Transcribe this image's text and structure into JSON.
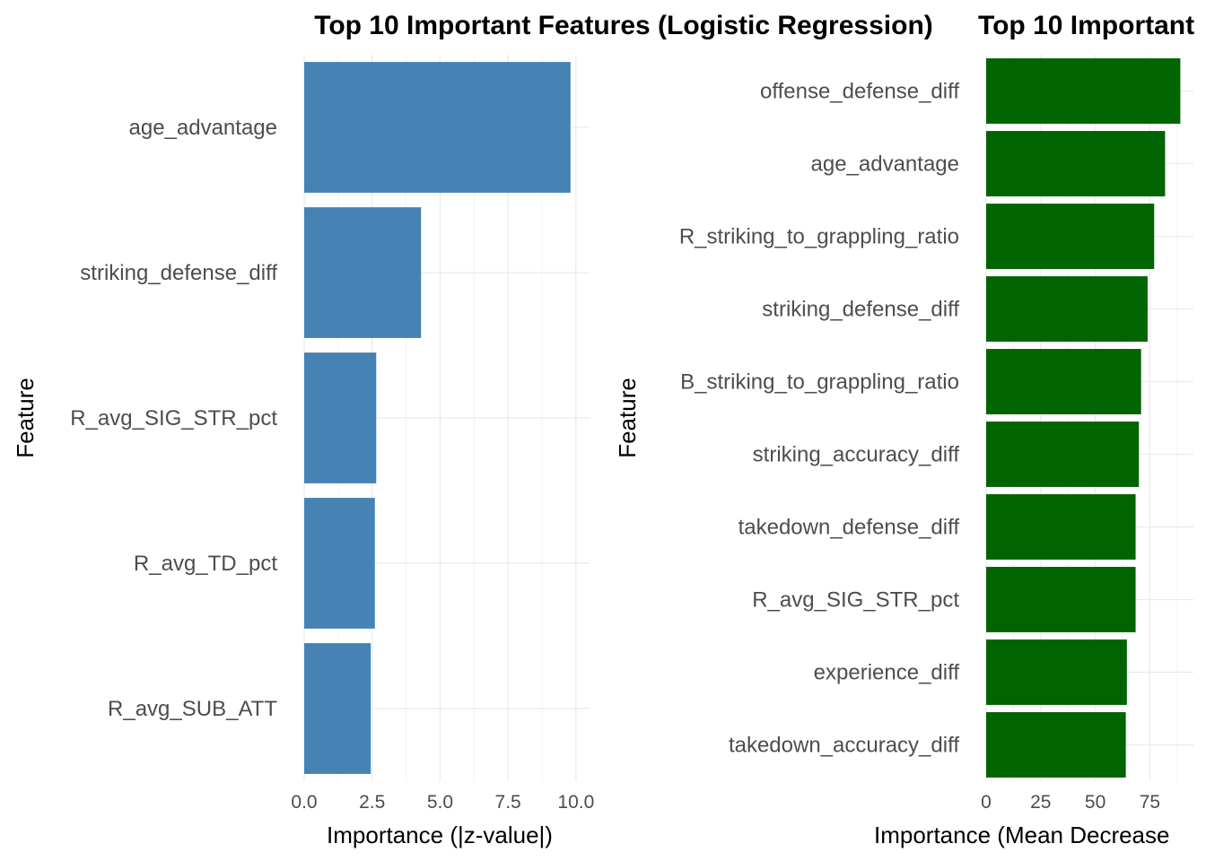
{
  "chart_data": [
    {
      "type": "bar",
      "orientation": "horizontal",
      "title": "Top 10 Important Features (Logistic Regression)",
      "xlabel": "Importance (|z-value|)",
      "ylabel": "Feature",
      "xlim": [
        0,
        10.5
      ],
      "xticks": [
        "0.0",
        "2.5",
        "5.0",
        "7.5",
        "10.0"
      ],
      "xtick_values": [
        0,
        2.5,
        5,
        7.5,
        10
      ],
      "grid": true,
      "color": "#4682B4",
      "categories": [
        "age_advantage",
        "striking_defense_diff",
        "R_avg_SIG_STR_pct",
        "R_avg_TD_pct",
        "R_avg_SUB_ATT"
      ],
      "values": [
        9.8,
        4.3,
        2.65,
        2.6,
        2.45
      ]
    },
    {
      "type": "bar",
      "orientation": "horizontal",
      "title": "Top 10 Important",
      "xlabel": "Importance (Mean Decrease",
      "ylabel": "Feature",
      "xlim": [
        0,
        95
      ],
      "xticks": [
        "0",
        "25",
        "50",
        "75"
      ],
      "xtick_values": [
        0,
        25,
        50,
        75
      ],
      "grid": true,
      "color": "#006400",
      "categories": [
        "offense_defense_diff",
        "age_advantage",
        "R_striking_to_grappling_ratio",
        "striking_defense_diff",
        "B_striking_to_grappling_ratio",
        "striking_accuracy_diff",
        "takedown_defense_diff",
        "R_avg_SIG_STR_pct",
        "experience_diff",
        "takedown_accuracy_diff"
      ],
      "values": [
        89,
        82,
        77,
        74,
        71,
        70,
        68.5,
        68.5,
        64.5,
        64
      ]
    }
  ]
}
